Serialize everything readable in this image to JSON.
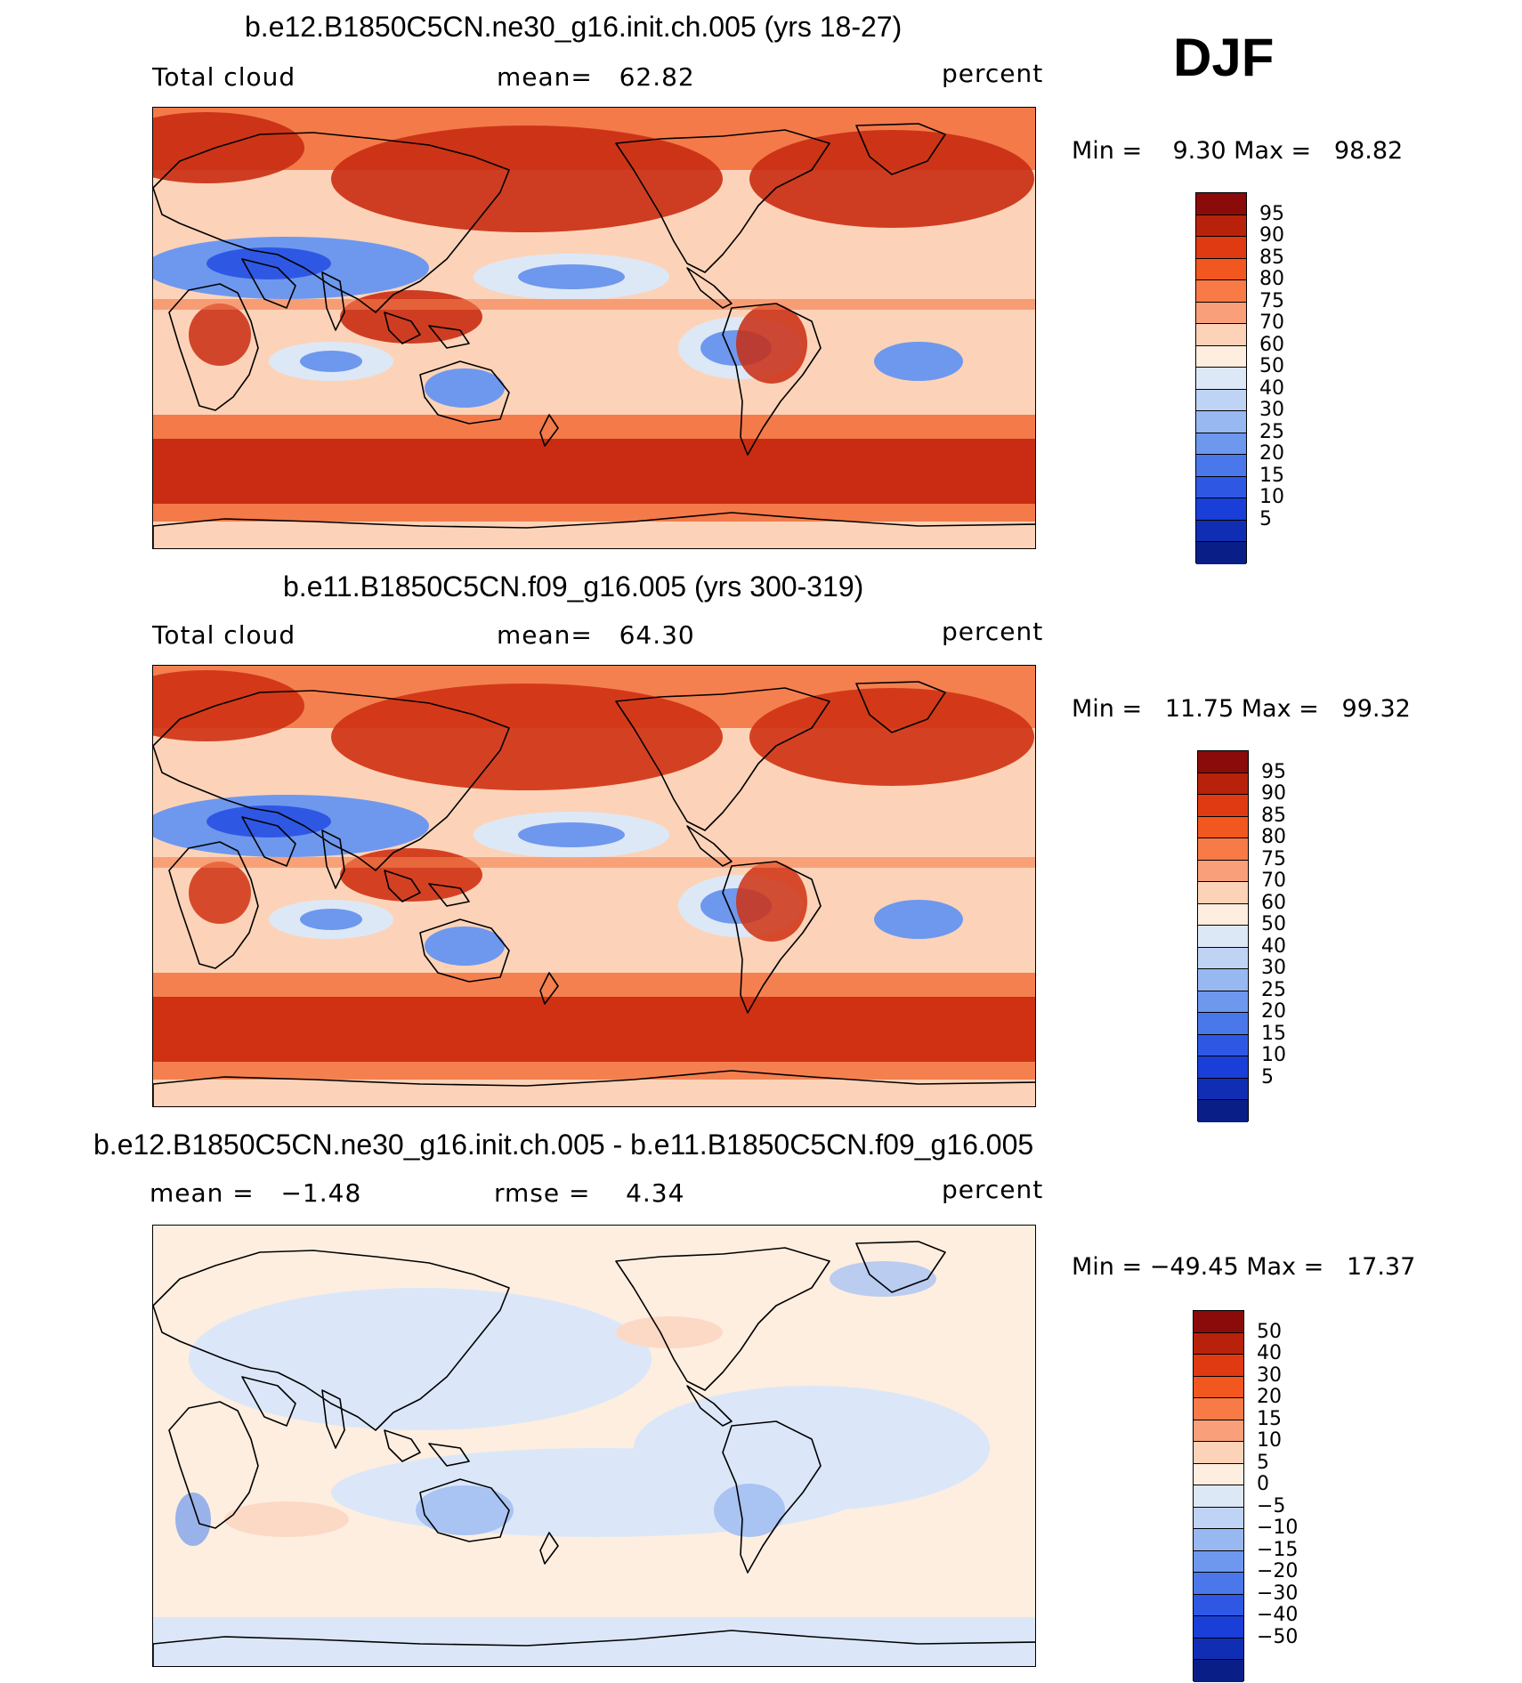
{
  "season": "DJF",
  "panels": [
    {
      "title": "b.e12.B1850C5CN.ne30_g16.init.ch.005 (yrs 18-27)",
      "left_label": "Total cloud",
      "center_label": "mean=   62.82",
      "right_label": "percent",
      "stats": "Min =    9.30 Max =   98.82",
      "colorbar_colors": [
        "#8b0a0a",
        "#b8220a",
        "#e03a12",
        "#f2571f",
        "#f77a47",
        "#f9a07a",
        "#fcd2b8",
        "#fdeee0",
        "#dde8f7",
        "#bfd3f5",
        "#98b8f2",
        "#6e98ee",
        "#4a77ea",
        "#2e58e4",
        "#1a3ed8",
        "#102eb4",
        "#0a1e88"
      ],
      "colorbar_labels": [
        "95",
        "90",
        "85",
        "80",
        "75",
        "70",
        "60",
        "50",
        "40",
        "30",
        "25",
        "20",
        "15",
        "10",
        "5"
      ],
      "legend_labels": [
        "95",
        "90",
        "85",
        "80",
        "75",
        "70",
        "60",
        "50",
        "40",
        "30",
        "25",
        "20",
        "15",
        "10",
        "5"
      ],
      "levels": {
        "high": "#c92c12",
        "mid": "#f47a4a",
        "low": "#fcd3b8",
        "clear": "#dde8f7",
        "blue": "#6e98ee",
        "deep": "#2e58e4"
      }
    },
    {
      "title": "b.e11.B1850C5CN.f09_g16.005 (yrs 300-319)",
      "left_label": "Total cloud",
      "center_label": "mean=   64.30",
      "right_label": "percent",
      "stats": "Min =   11.75 Max =   99.32",
      "colorbar_colors": [
        "#8b0a0a",
        "#b8220a",
        "#e03a12",
        "#f2571f",
        "#f77a47",
        "#f9a07a",
        "#fcd2b8",
        "#fdeee0",
        "#dde8f7",
        "#bfd3f5",
        "#98b8f2",
        "#6e98ee",
        "#4a77ea",
        "#2e58e4",
        "#1a3ed8",
        "#102eb4",
        "#0a1e88"
      ],
      "legend_labels": [
        "95",
        "90",
        "85",
        "80",
        "75",
        "70",
        "60",
        "50",
        "40",
        "30",
        "25",
        "20",
        "15",
        "10",
        "5"
      ],
      "levels": {
        "high": "#cf3112",
        "mid": "#f5804f",
        "low": "#fcd3b8",
        "clear": "#dde8f7",
        "blue": "#6e98ee",
        "deep": "#2e58e4"
      }
    },
    {
      "title": "b.e12.B1850C5CN.ne30_g16.init.ch.005 - b.e11.B1850C5CN.f09_g16.005",
      "left_label": "mean =   −1.48",
      "center_label": "rmse =    4.34",
      "right_label": "percent",
      "stats": "Min = −49.45 Max =   17.37",
      "colorbar_colors": [
        "#8b0a0a",
        "#b8220a",
        "#e03a12",
        "#f2571f",
        "#f77a47",
        "#f9a07a",
        "#fcd2b8",
        "#fdeee0",
        "#dde8f7",
        "#bfd3f5",
        "#98b8f2",
        "#6e98ee",
        "#4a77ea",
        "#2e58e4",
        "#1a3ed8",
        "#102eb4",
        "#0a1e88"
      ],
      "legend_labels": [
        "50",
        "40",
        "30",
        "20",
        "15",
        "10",
        "5",
        "0",
        "−5",
        "−10",
        "−15",
        "−20",
        "−30",
        "−40",
        "−50"
      ],
      "levels": {
        "high": "#fde6d6",
        "mid": "#fcd9c4",
        "low": "#fdeee0",
        "clear": "#dbe7f8",
        "blue": "#a9c3f2",
        "deep": "#6e98ee"
      }
    }
  ]
}
